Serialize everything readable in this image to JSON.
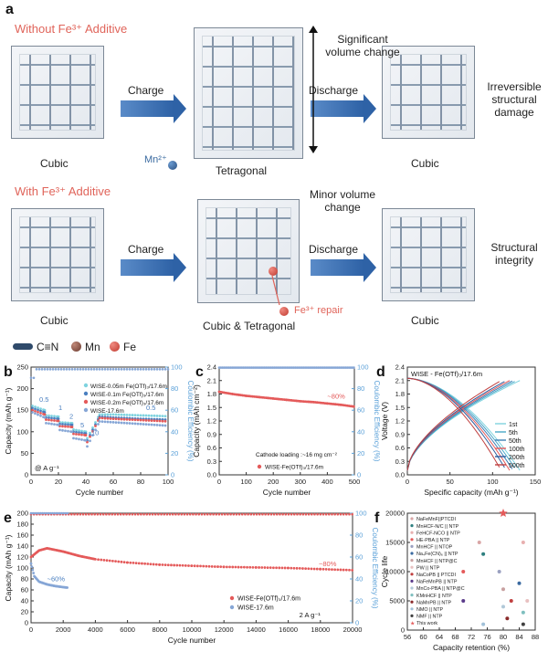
{
  "panel_a": {
    "label": "a",
    "without_title": "Without Fe³⁺ Additive",
    "with_title": "With Fe³⁺ Additive",
    "charge": "Charge",
    "discharge": "Discharge",
    "significant": "Significant volume change",
    "minor": "Minor volume change",
    "irreversible": "Irreversible structural damage",
    "integrity": "Structural integrity",
    "cubic": "Cubic",
    "tetragonal": "Tetragonal",
    "cubic_tetragonal": "Cubic & Tetragonal",
    "mn_ion": "Mn²⁺",
    "fe_repair": "Fe³⁺ repair",
    "legend_cn": "C≡N",
    "legend_mn": "Mn",
    "legend_fe": "Fe"
  },
  "chart_data": [
    {
      "panel": "b",
      "type": "line",
      "xlabel": "Cycle number",
      "ylabel": "Capacity (mAh g⁻¹)",
      "y2label": "Coulombic Efficiency (%)",
      "xlim": [
        0,
        100
      ],
      "ylim": [
        0,
        250
      ],
      "y2lim": [
        0,
        100
      ],
      "xticks": [
        0,
        20,
        40,
        60,
        80,
        100
      ],
      "yticks": [
        0,
        50,
        100,
        150,
        200,
        250
      ],
      "y2ticks": [
        0,
        20,
        40,
        60,
        80,
        100
      ],
      "rate_labels": [
        "0.5",
        "1",
        "2",
        "5",
        "10",
        "0.5"
      ],
      "unit_note": "@ A g⁻¹",
      "legend": [
        "WISE-0.05m Fe(OTf)₃/17.6m",
        "WISE-0.1m Fe(OTf)₃/17.6m",
        "WISE-0.2m Fe(OTf)₃/17.6m",
        "WISE-17.6m"
      ],
      "series_colors": [
        "#7fd3df",
        "#4a7fc0",
        "#e45a5a",
        "#86a6d6"
      ],
      "series": [
        {
          "name": "WISE-0.05m Fe(OTf)₃/17.6m",
          "x": [
            1,
            10,
            11,
            20,
            21,
            30,
            31,
            40,
            41,
            50,
            60,
            80,
            100
          ],
          "y": [
            160,
            150,
            138,
            135,
            122,
            120,
            105,
            100,
            85,
            140,
            140,
            138,
            136
          ]
        },
        {
          "name": "WISE-0.1m Fe(OTf)₃/17.6m",
          "x": [
            1,
            10,
            11,
            20,
            21,
            30,
            31,
            40,
            41,
            50,
            60,
            80,
            100
          ],
          "y": [
            155,
            145,
            133,
            130,
            118,
            116,
            100,
            96,
            80,
            135,
            133,
            130,
            128
          ]
        },
        {
          "name": "WISE-0.2m Fe(OTf)₃/17.6m",
          "x": [
            1,
            10,
            11,
            20,
            21,
            30,
            31,
            40,
            41,
            50,
            60,
            80,
            100
          ],
          "y": [
            150,
            140,
            128,
            125,
            113,
            111,
            95,
            92,
            76,
            132,
            130,
            127,
            124
          ]
        },
        {
          "name": "WISE-17.6m",
          "x": [
            1,
            10,
            11,
            20,
            21,
            30,
            31,
            40,
            41,
            50,
            60,
            80,
            100
          ],
          "y": [
            145,
            133,
            120,
            116,
            104,
            100,
            85,
            80,
            66,
            124,
            122,
            118,
            114
          ]
        }
      ]
    },
    {
      "panel": "c",
      "type": "scatter",
      "xlabel": "Cycle number",
      "ylabel": "Capacity (mAh cm⁻²)",
      "y2label": "Coulombic Efficiency (%)",
      "xlim": [
        0,
        500
      ],
      "ylim": [
        0.0,
        2.4
      ],
      "y2lim": [
        0,
        100
      ],
      "xticks": [
        0,
        100,
        200,
        300,
        400,
        500
      ],
      "yticks": [
        0.0,
        0.3,
        0.6,
        0.9,
        1.2,
        1.5,
        1.8,
        2.1,
        2.4
      ],
      "y2ticks": [
        0,
        20,
        40,
        60,
        80,
        100
      ],
      "annotation_retention": "~80%",
      "annotation_loading": "Cathode loading :~16 mg cm⁻²",
      "legend": [
        "WISE-Fe(OTf)₃/17.6m"
      ],
      "capacity": {
        "x": [
          0,
          50,
          100,
          150,
          200,
          250,
          300,
          350,
          400,
          450,
          500
        ],
        "y": [
          1.85,
          1.8,
          1.76,
          1.73,
          1.7,
          1.67,
          1.64,
          1.62,
          1.59,
          1.56,
          1.52
        ]
      },
      "ce": {
        "x": [
          0,
          500
        ],
        "y": [
          99.5,
          99.5
        ]
      }
    },
    {
      "panel": "d",
      "type": "line",
      "title": "WISE - Fe(OTf)₃/17.6m",
      "xlabel": "Specific capacity (mAh g⁻¹)",
      "ylabel": "Voltage (V)",
      "xlim": [
        0,
        150
      ],
      "ylim": [
        0.0,
        2.4
      ],
      "xticks": [
        0,
        50,
        100,
        150
      ],
      "yticks": [
        0.0,
        0.3,
        0.6,
        0.9,
        1.2,
        1.5,
        1.8,
        2.1,
        2.4
      ],
      "legend": [
        "1st",
        "5th",
        "50th",
        "100th",
        "200th",
        "500th"
      ],
      "series_colors": [
        "#7fd3df",
        "#4aa8c8",
        "#3d7fb5",
        "#e45a5a",
        "#2e5c9e",
        "#c04040"
      ],
      "cap_max": [
        132,
        128,
        124,
        120,
        116,
        110
      ]
    },
    {
      "panel": "e",
      "type": "scatter",
      "xlabel": "Cycle number",
      "ylabel": "Capacity (mAh g⁻¹)",
      "y2label": "Coulombic Efficiency (%)",
      "xlim": [
        0,
        20000
      ],
      "ylim": [
        0,
        200
      ],
      "y2lim": [
        0,
        100
      ],
      "xticks": [
        0,
        2000,
        4000,
        6000,
        8000,
        10000,
        12000,
        14000,
        16000,
        18000,
        20000
      ],
      "yticks": [
        0,
        20,
        40,
        60,
        80,
        100,
        120,
        140,
        160,
        180,
        200
      ],
      "y2ticks": [
        0,
        20,
        40,
        60,
        80,
        100
      ],
      "annotation_fe": "~80%",
      "annotation_wise": "~60%",
      "rate_note": "2 A g⁻¹",
      "legend": [
        "WISE-Fe(OTf)₃/17.6m",
        "WISE-17.6m"
      ],
      "fe_capacity": {
        "x": [
          0,
          500,
          1000,
          2000,
          3000,
          4000,
          6000,
          8000,
          10000,
          12000,
          14000,
          16000,
          18000,
          20000
        ],
        "y": [
          120,
          132,
          136,
          130,
          122,
          116,
          110,
          106,
          104,
          102,
          101,
          100,
          98,
          96
        ]
      },
      "wise_capacity": {
        "x": [
          0,
          200,
          500,
          1000,
          1500,
          2000,
          2300
        ],
        "y": [
          108,
          85,
          75,
          70,
          67,
          65,
          64
        ]
      },
      "ce": {
        "x": [
          0,
          20000
        ],
        "y": [
          99,
          99
        ]
      }
    },
    {
      "panel": "f",
      "type": "scatter",
      "xlabel": "Capacity retention (%)",
      "ylabel": "Cycle life",
      "xlim": [
        56,
        88
      ],
      "ylim": [
        0,
        20000
      ],
      "xticks": [
        56,
        60,
        64,
        68,
        72,
        76,
        80,
        84,
        88
      ],
      "yticks": [
        0,
        5000,
        10000,
        15000,
        20000
      ],
      "points": [
        {
          "name": "NaFeMnF||PTCDI",
          "x": 74,
          "y": 15000,
          "color": "#d9a6a6"
        },
        {
          "name": "MnHCF-N/C || NTP",
          "x": 75,
          "y": 13000,
          "color": "#2e7f7f"
        },
        {
          "name": "FeHCF-NCO || NTP",
          "x": 85,
          "y": 15000,
          "color": "#e8b0b0"
        },
        {
          "name": "HE-PBA || NTP",
          "x": 70,
          "y": 10000,
          "color": "#e45a5a"
        },
        {
          "name": "MnHCF || NTOP",
          "x": 79,
          "y": 10000,
          "color": "#9aa0c0"
        },
        {
          "name": "Na₄Fe(CN)₆ || NTP",
          "x": 84,
          "y": 8000,
          "color": "#3a6aa0"
        },
        {
          "name": "MnHCF || NTP@C",
          "x": 80,
          "y": 7000,
          "color": "#c8a0a0"
        },
        {
          "name": "PW || NTP",
          "x": 86,
          "y": 5000,
          "color": "#e8c0c0"
        },
        {
          "name": "NaCoPB || PTCDI",
          "x": 82,
          "y": 5000,
          "color": "#c04040"
        },
        {
          "name": "NaFeMnPB || NTP",
          "x": 70,
          "y": 5000,
          "color": "#5a3a8a"
        },
        {
          "name": "MnCo-PBA || NTP@C",
          "x": 80,
          "y": 4000,
          "color": "#b0c8d8"
        },
        {
          "name": "KMnHCF || NTP",
          "x": 85,
          "y": 3000,
          "color": "#7fbfbf"
        },
        {
          "name": "NaMnPB || NTP",
          "x": 81,
          "y": 2000,
          "color": "#8a2a2a"
        },
        {
          "name": "NMO || NTP",
          "x": 75,
          "y": 1000,
          "color": "#a0c0d8"
        },
        {
          "name": "NMF || NTP",
          "x": 85,
          "y": 1000,
          "color": "#404040"
        },
        {
          "name": "This work",
          "x": 80,
          "y": 20000,
          "color": "#e45a5a",
          "star": true
        }
      ]
    }
  ]
}
